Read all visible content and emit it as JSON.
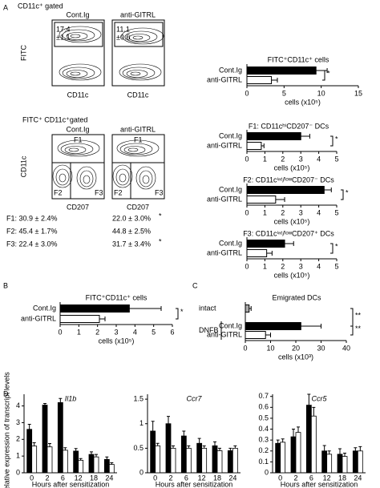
{
  "panel_labels": [
    "A",
    "B",
    "C",
    "D"
  ],
  "flow": {
    "gate1": "CD11c⁺ gated",
    "groups": [
      "Cont.Ig",
      "anti-GITRL"
    ],
    "percents": [
      [
        "17.4",
        "±1.1"
      ],
      [
        "11.1",
        "±0.6"
      ]
    ],
    "y_label_1": "FITC",
    "x_label_1": "CD11c",
    "gate2": "FITC⁺ CD11c⁺gated",
    "gates": [
      "F1",
      "F2",
      "F3"
    ],
    "y_label_2": "CD11c",
    "x_label_2": "CD207",
    "stats": [
      {
        "label": "F1: 30.9 ± 2.4%",
        "anti": "22.0 ± 3.0%",
        "sig": "*"
      },
      {
        "label": "F2: 45.4 ± 1.7%",
        "anti": "44.8 ± 2.5%"
      },
      {
        "label": "F3: 22.4 ± 3.0%",
        "anti": "31.7 ± 3.4%",
        "sig": "*"
      }
    ]
  },
  "chart_data": [
    {
      "type": "bar",
      "orientation": "horizontal",
      "title": "FITC⁺CD11c⁺ cells",
      "categories": [
        "Cont.Ig",
        "anti-GITRL"
      ],
      "values": [
        9.3,
        3.3
      ],
      "errors": [
        1.5,
        0.8
      ],
      "colors": [
        "#000000",
        "#ffffff"
      ],
      "xlim": [
        0,
        15
      ],
      "xticks": [
        0,
        5,
        10,
        15
      ],
      "xlabel": "cells (x10⁵)",
      "annotation": "*"
    },
    {
      "type": "bar",
      "orientation": "horizontal",
      "title": "F1: CD11cʰⁱCD207⁻ DCs",
      "categories": [
        "Cont.Ig",
        "anti-GITRL"
      ],
      "values": [
        3.0,
        0.8
      ],
      "errors": [
        0.5,
        0.15
      ],
      "colors": [
        "#000000",
        "#ffffff"
      ],
      "xlim": [
        0,
        5
      ],
      "xticks": [
        0,
        1,
        2,
        3,
        4,
        5
      ],
      "xlabel": "cells (x10⁵)",
      "annotation": "*"
    },
    {
      "type": "bar",
      "orientation": "horizontal",
      "title": "F2: CD11cⁱⁿᵗ/ˡᵒʷCD207⁻ DCs",
      "categories": [
        "Cont.Ig",
        "anti-GITRL"
      ],
      "values": [
        4.3,
        1.6
      ],
      "errors": [
        0.4,
        0.5
      ],
      "colors": [
        "#000000",
        "#ffffff"
      ],
      "xlim": [
        0,
        5
      ],
      "xticks": [
        0,
        1,
        2,
        3,
        4,
        5
      ],
      "xlabel": "cells (x10⁵)",
      "annotation": "*"
    },
    {
      "type": "bar",
      "orientation": "horizontal",
      "title": "F3: CD11cⁱⁿᵗ/ˡᵒʷCD207⁺ DCs",
      "categories": [
        "Cont.Ig",
        "anti-GITRL"
      ],
      "values": [
        2.1,
        1.1
      ],
      "errors": [
        0.5,
        0.3
      ],
      "colors": [
        "#000000",
        "#ffffff"
      ],
      "xlim": [
        0,
        5
      ],
      "xticks": [
        0,
        1,
        2,
        3,
        4,
        5
      ],
      "xlabel": "cells (x10⁵)",
      "annotation": "*"
    },
    {
      "type": "bar",
      "orientation": "horizontal",
      "title": "FITC⁺CD11c⁺ cells",
      "categories": [
        "Cont.Ig",
        "anti-GITRL"
      ],
      "values": [
        3.7,
        2.1
      ],
      "errors": [
        1.7,
        0.3
      ],
      "colors": [
        "#000000",
        "#ffffff"
      ],
      "xlim": [
        0,
        6
      ],
      "xticks": [
        0,
        1,
        2,
        3,
        4,
        5,
        6
      ],
      "xlabel": "cells (x10⁵)",
      "annotation": "*"
    },
    {
      "type": "bar",
      "orientation": "horizontal",
      "title": "Emigrated DCs",
      "categories": [
        "intact",
        "Cont.Ig",
        "anti-GITRL"
      ],
      "group_label": "DNFB",
      "values": [
        1.5,
        22,
        8
      ],
      "errors": [
        0.8,
        8,
        2
      ],
      "colors": [
        "#aaaaaa",
        "#000000",
        "#ffffff"
      ],
      "xlim": [
        0,
        40
      ],
      "xticks": [
        0,
        10,
        20,
        30,
        40
      ],
      "xlabel": "cells (x10³)",
      "annotations": [
        "**",
        "**"
      ]
    },
    {
      "type": "grouped_bar",
      "title": "Il1b",
      "ylabel": "Relative expression of transcript levels",
      "xlabel": "Hours after sensitization",
      "categories": [
        "0",
        "2",
        "6",
        "12",
        "18",
        "24"
      ],
      "ylim": [
        0,
        4.7
      ],
      "yticks": [
        0,
        1,
        2,
        3,
        4
      ],
      "series": [
        {
          "color": "#000000",
          "values": [
            2.6,
            4.05,
            4.2,
            1.3,
            1.1,
            0.8
          ],
          "errors": [
            0.3,
            0.1,
            0.25,
            0.15,
            0.15,
            0.15
          ]
        },
        {
          "color": "#ffffff",
          "values": [
            1.6,
            1.55,
            1.35,
            0.75,
            0.95,
            0.5
          ],
          "errors": [
            0.2,
            0.2,
            0.15,
            0.1,
            0.15,
            0.1
          ]
        }
      ]
    },
    {
      "type": "grouped_bar",
      "title": "Ccr7",
      "xlabel": "Hours after sensitization",
      "categories": [
        "0",
        "2",
        "6",
        "12",
        "18",
        "24"
      ],
      "ylim": [
        0,
        1.6
      ],
      "yticks": [
        0,
        0.5,
        1,
        1.5
      ],
      "series": [
        {
          "color": "#000000",
          "values": [
            0.85,
            1.0,
            0.75,
            0.6,
            0.55,
            0.45
          ],
          "errors": [
            0.2,
            0.15,
            0.1,
            0.1,
            0.08,
            0.05
          ]
        },
        {
          "color": "#ffffff",
          "values": [
            0.55,
            0.5,
            0.5,
            0.5,
            0.45,
            0.5
          ],
          "errors": [
            0.05,
            0.05,
            0.05,
            0.05,
            0.05,
            0.05
          ]
        }
      ]
    },
    {
      "type": "grouped_bar",
      "title": "Ccr5",
      "xlabel": "Hours after sensitization",
      "categories": [
        "0",
        "2",
        "6",
        "12",
        "18",
        "24"
      ],
      "ylim": [
        0,
        0.72
      ],
      "yticks": [
        0,
        0.1,
        0.2,
        0.3,
        0.4,
        0.5,
        0.6,
        0.7
      ],
      "series": [
        {
          "color": "#000000",
          "values": [
            0.27,
            0.33,
            0.62,
            0.2,
            0.17,
            0.2
          ],
          "errors": [
            0.03,
            0.07,
            0.1,
            0.05,
            0.05,
            0.03
          ]
        },
        {
          "color": "#ffffff",
          "values": [
            0.28,
            0.37,
            0.52,
            0.17,
            0.15,
            0.2
          ],
          "errors": [
            0.03,
            0.05,
            0.08,
            0.03,
            0.03,
            0.04
          ]
        }
      ]
    }
  ]
}
